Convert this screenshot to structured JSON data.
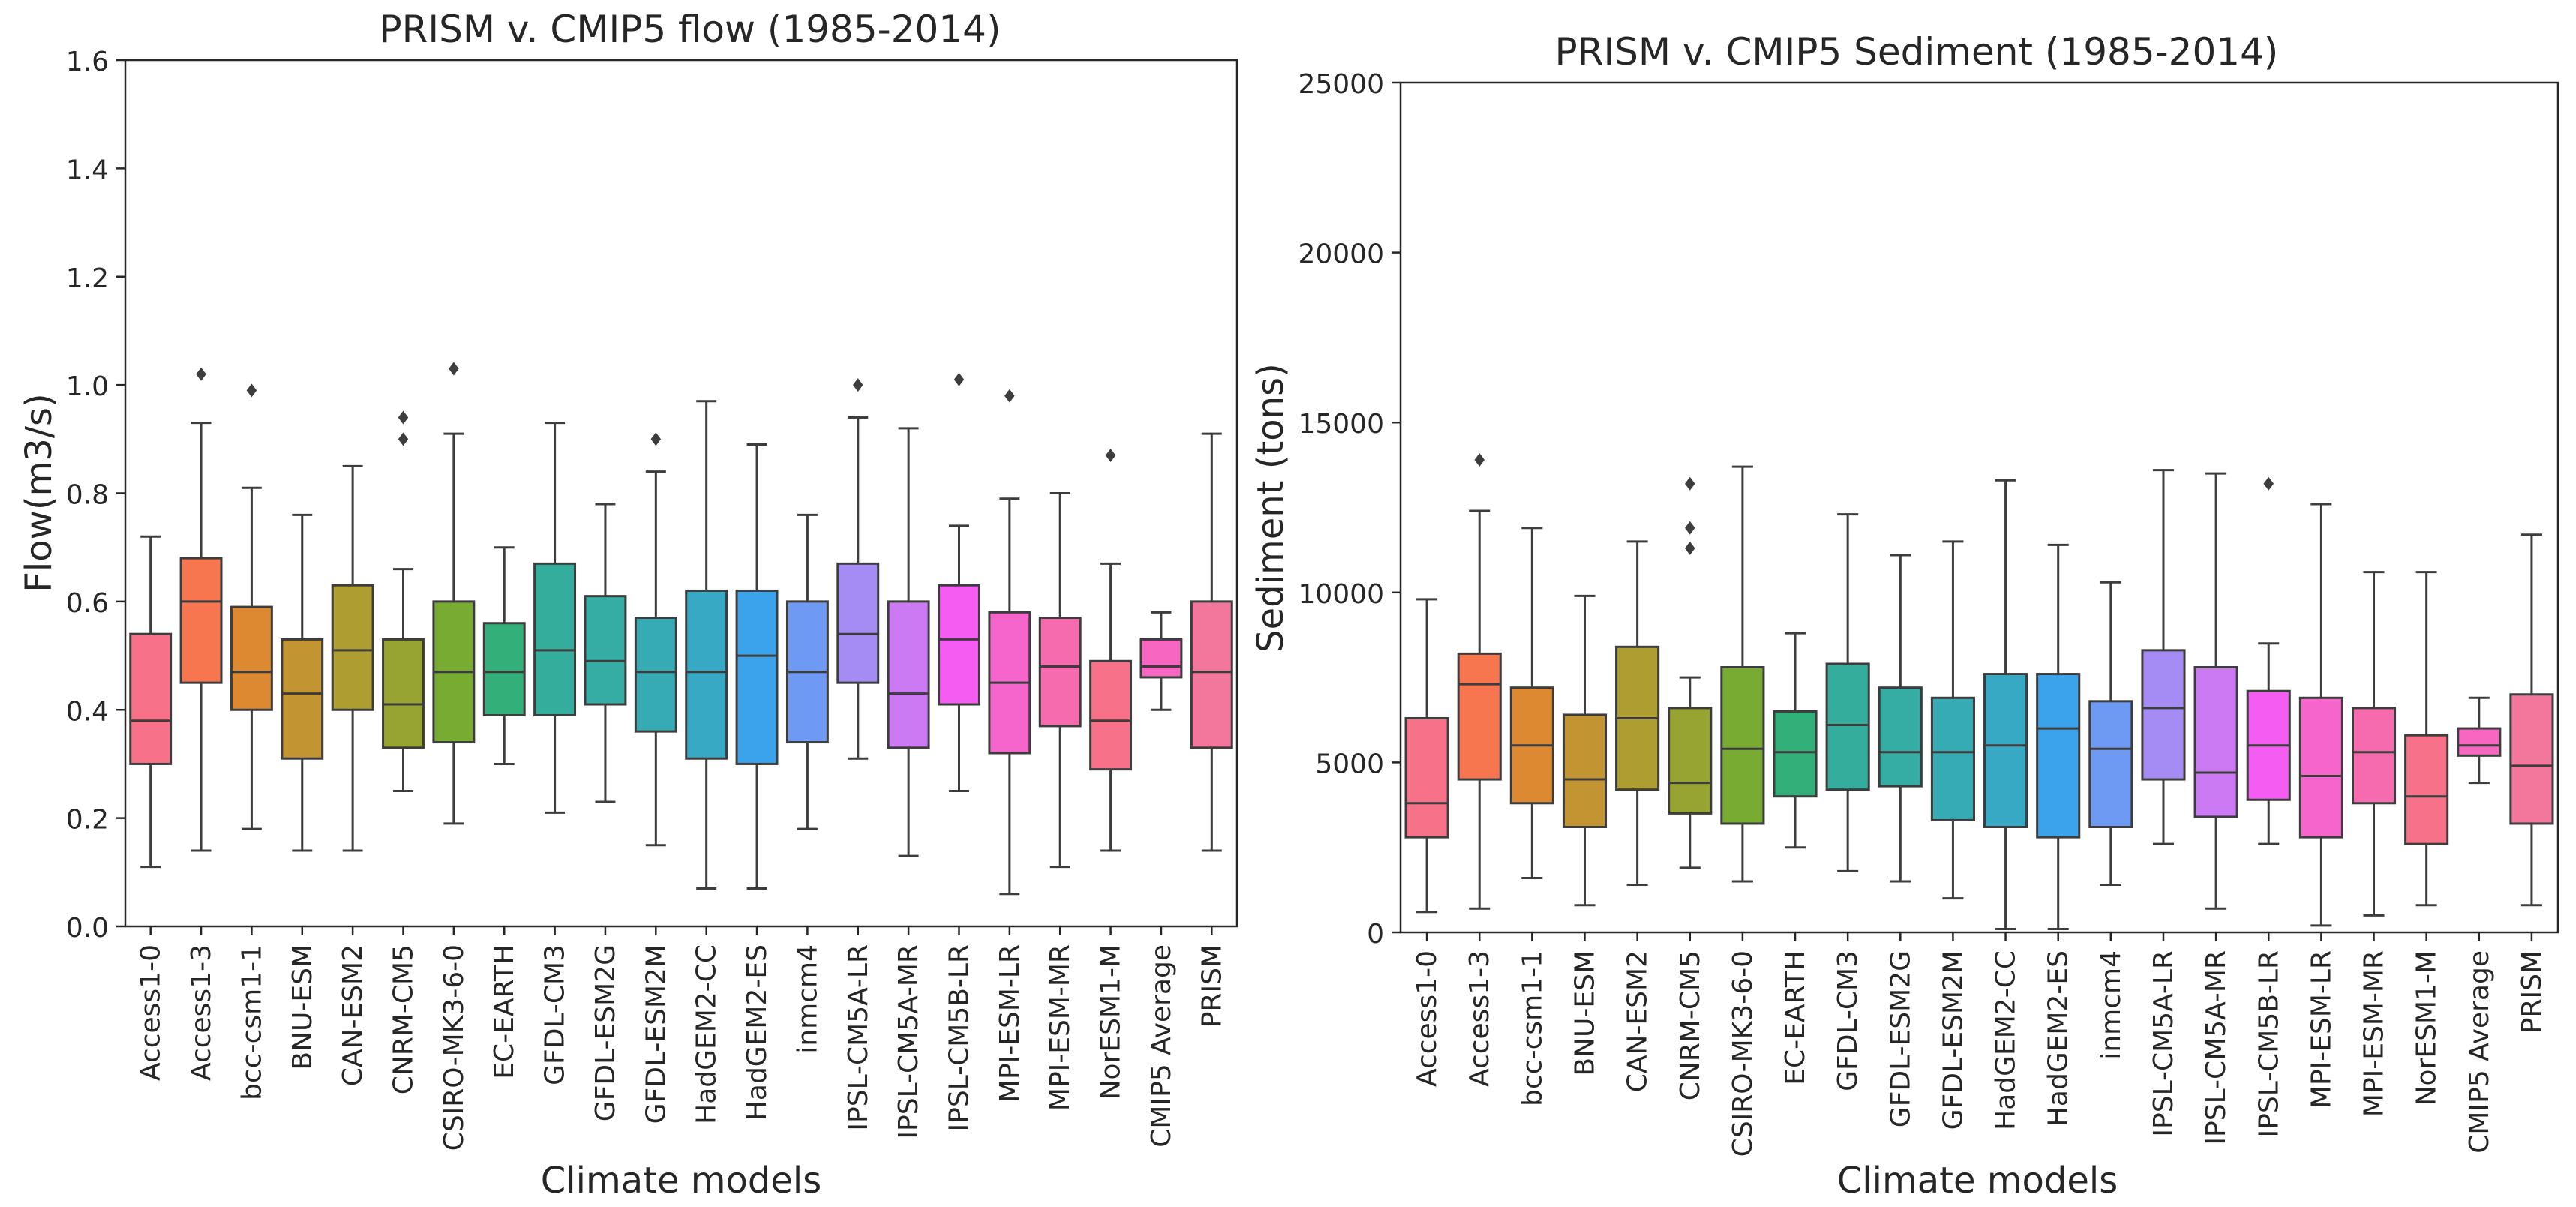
{
  "chart_data": [
    {
      "type": "boxplot",
      "title": "PRISM v. CMIP5 flow (1985-2014)",
      "xlabel": "Climate models",
      "ylabel": "Flow(m3/s)",
      "ylim": [
        0,
        1.6
      ],
      "yticks": [
        0.0,
        0.2,
        0.4,
        0.6,
        0.8,
        1.0,
        1.2,
        1.4,
        1.6
      ],
      "ytick_labels": [
        "0.0",
        "0.2",
        "0.4",
        "0.6",
        "0.8",
        "1.0",
        "1.2",
        "1.4",
        "1.6"
      ],
      "categories": [
        "Access1-0",
        "Access1-3",
        "bcc-csm1-1",
        "BNU-ESM",
        "CAN-ESM2",
        "CNRM-CM5",
        "CSIRO-MK3-6-0",
        "EC-EARTH",
        "GFDL-CM3",
        "GFDL-ESM2G",
        "GFDL-ESM2M",
        "HadGEM2-CC",
        "HadGEM2-ES",
        "inmcm4",
        "IPSL-CM5A-LR",
        "IPSL-CM5A-MR",
        "IPSL-CM5B-LR",
        "MPI-ESM-LR",
        "MPI-ESM-MR",
        "NorESM1-M",
        "CMIP5 Average",
        "PRISM"
      ],
      "boxes": [
        {
          "whisker_low": 0.11,
          "q1": 0.3,
          "median": 0.38,
          "q3": 0.54,
          "whisker_high": 0.72,
          "outliers": []
        },
        {
          "whisker_low": 0.14,
          "q1": 0.45,
          "median": 0.6,
          "q3": 0.68,
          "whisker_high": 0.93,
          "outliers": [
            1.02
          ]
        },
        {
          "whisker_low": 0.18,
          "q1": 0.4,
          "median": 0.47,
          "q3": 0.59,
          "whisker_high": 0.81,
          "outliers": [
            0.99
          ]
        },
        {
          "whisker_low": 0.14,
          "q1": 0.31,
          "median": 0.43,
          "q3": 0.53,
          "whisker_high": 0.76,
          "outliers": []
        },
        {
          "whisker_low": 0.14,
          "q1": 0.4,
          "median": 0.51,
          "q3": 0.63,
          "whisker_high": 0.85,
          "outliers": []
        },
        {
          "whisker_low": 0.25,
          "q1": 0.33,
          "median": 0.41,
          "q3": 0.53,
          "whisker_high": 0.66,
          "outliers": [
            0.9,
            0.94
          ]
        },
        {
          "whisker_low": 0.19,
          "q1": 0.34,
          "median": 0.47,
          "q3": 0.6,
          "whisker_high": 0.91,
          "outliers": [
            1.03
          ]
        },
        {
          "whisker_low": 0.3,
          "q1": 0.39,
          "median": 0.47,
          "q3": 0.56,
          "whisker_high": 0.7,
          "outliers": []
        },
        {
          "whisker_low": 0.21,
          "q1": 0.39,
          "median": 0.51,
          "q3": 0.67,
          "whisker_high": 0.93,
          "outliers": []
        },
        {
          "whisker_low": 0.23,
          "q1": 0.41,
          "median": 0.49,
          "q3": 0.61,
          "whisker_high": 0.78,
          "outliers": []
        },
        {
          "whisker_low": 0.15,
          "q1": 0.36,
          "median": 0.47,
          "q3": 0.57,
          "whisker_high": 0.84,
          "outliers": [
            0.9
          ]
        },
        {
          "whisker_low": 0.07,
          "q1": 0.31,
          "median": 0.47,
          "q3": 0.62,
          "whisker_high": 0.97,
          "outliers": []
        },
        {
          "whisker_low": 0.07,
          "q1": 0.3,
          "median": 0.5,
          "q3": 0.62,
          "whisker_high": 0.89,
          "outliers": []
        },
        {
          "whisker_low": 0.18,
          "q1": 0.34,
          "median": 0.47,
          "q3": 0.6,
          "whisker_high": 0.76,
          "outliers": []
        },
        {
          "whisker_low": 0.31,
          "q1": 0.45,
          "median": 0.54,
          "q3": 0.67,
          "whisker_high": 0.94,
          "outliers": [
            1.0
          ]
        },
        {
          "whisker_low": 0.13,
          "q1": 0.33,
          "median": 0.43,
          "q3": 0.6,
          "whisker_high": 0.92,
          "outliers": []
        },
        {
          "whisker_low": 0.25,
          "q1": 0.41,
          "median": 0.53,
          "q3": 0.63,
          "whisker_high": 0.74,
          "outliers": [
            1.01
          ]
        },
        {
          "whisker_low": 0.06,
          "q1": 0.32,
          "median": 0.45,
          "q3": 0.58,
          "whisker_high": 0.79,
          "outliers": [
            0.98
          ]
        },
        {
          "whisker_low": 0.11,
          "q1": 0.37,
          "median": 0.48,
          "q3": 0.57,
          "whisker_high": 0.8,
          "outliers": []
        },
        {
          "whisker_low": 0.14,
          "q1": 0.29,
          "median": 0.38,
          "q3": 0.49,
          "whisker_high": 0.67,
          "outliers": [
            0.87
          ]
        },
        {
          "whisker_low": 0.4,
          "q1": 0.46,
          "median": 0.48,
          "q3": 0.53,
          "whisker_high": 0.58,
          "outliers": []
        },
        {
          "whisker_low": 0.14,
          "q1": 0.33,
          "median": 0.47,
          "q3": 0.6,
          "whisker_high": 0.91,
          "outliers": []
        }
      ]
    },
    {
      "type": "boxplot",
      "title": "PRISM v. CMIP5 Sediment (1985-2014)",
      "xlabel": "Climate models",
      "ylabel": "Sediment (tons)",
      "ylim": [
        0,
        25000
      ],
      "yticks": [
        0,
        5000,
        10000,
        15000,
        20000,
        25000
      ],
      "ytick_labels": [
        "0",
        "5000",
        "10000",
        "15000",
        "20000",
        "25000"
      ],
      "categories": [
        "Access1-0",
        "Access1-3",
        "bcc-csm1-1",
        "BNU-ESM",
        "CAN-ESM2",
        "CNRM-CM5",
        "CSIRO-MK3-6-0",
        "EC-EARTH",
        "GFDL-CM3",
        "GFDL-ESM2G",
        "GFDL-ESM2M",
        "HadGEM2-CC",
        "HadGEM2-ES",
        "inmcm4",
        "IPSL-CM5A-LR",
        "IPSL-CM5A-MR",
        "IPSL-CM5B-LR",
        "MPI-ESM-LR",
        "MPI-ESM-MR",
        "NorESM1-M",
        "CMIP5 Average",
        "PRISM"
      ],
      "boxes": [
        {
          "whisker_low": 600,
          "q1": 2800,
          "median": 3800,
          "q3": 6300,
          "whisker_high": 9800,
          "outliers": []
        },
        {
          "whisker_low": 700,
          "q1": 4500,
          "median": 7300,
          "q3": 8200,
          "whisker_high": 12400,
          "outliers": [
            13900
          ]
        },
        {
          "whisker_low": 1600,
          "q1": 3800,
          "median": 5500,
          "q3": 7200,
          "whisker_high": 11900,
          "outliers": []
        },
        {
          "whisker_low": 800,
          "q1": 3100,
          "median": 4500,
          "q3": 6400,
          "whisker_high": 9900,
          "outliers": []
        },
        {
          "whisker_low": 1400,
          "q1": 4200,
          "median": 6300,
          "q3": 8400,
          "whisker_high": 11500,
          "outliers": []
        },
        {
          "whisker_low": 1900,
          "q1": 3500,
          "median": 4400,
          "q3": 6600,
          "whisker_high": 7500,
          "outliers": [
            11300,
            11900,
            13200
          ]
        },
        {
          "whisker_low": 1500,
          "q1": 3200,
          "median": 5400,
          "q3": 7800,
          "whisker_high": 13700,
          "outliers": []
        },
        {
          "whisker_low": 2500,
          "q1": 4000,
          "median": 5300,
          "q3": 6500,
          "whisker_high": 8800,
          "outliers": []
        },
        {
          "whisker_low": 1800,
          "q1": 4200,
          "median": 6100,
          "q3": 7900,
          "whisker_high": 12300,
          "outliers": []
        },
        {
          "whisker_low": 1500,
          "q1": 4300,
          "median": 5300,
          "q3": 7200,
          "whisker_high": 11100,
          "outliers": []
        },
        {
          "whisker_low": 1000,
          "q1": 3300,
          "median": 5300,
          "q3": 6900,
          "whisker_high": 11500,
          "outliers": []
        },
        {
          "whisker_low": 100,
          "q1": 3100,
          "median": 5500,
          "q3": 7600,
          "whisker_high": 13300,
          "outliers": []
        },
        {
          "whisker_low": 100,
          "q1": 2800,
          "median": 6000,
          "q3": 7600,
          "whisker_high": 11400,
          "outliers": []
        },
        {
          "whisker_low": 1400,
          "q1": 3100,
          "median": 5400,
          "q3": 6800,
          "whisker_high": 10300,
          "outliers": []
        },
        {
          "whisker_low": 2600,
          "q1": 4500,
          "median": 6600,
          "q3": 8300,
          "whisker_high": 13600,
          "outliers": []
        },
        {
          "whisker_low": 700,
          "q1": 3400,
          "median": 4700,
          "q3": 7800,
          "whisker_high": 13500,
          "outliers": []
        },
        {
          "whisker_low": 2600,
          "q1": 3900,
          "median": 5500,
          "q3": 7100,
          "whisker_high": 8500,
          "outliers": [
            13200
          ]
        },
        {
          "whisker_low": 200,
          "q1": 2800,
          "median": 4600,
          "q3": 6900,
          "whisker_high": 12600,
          "outliers": []
        },
        {
          "whisker_low": 500,
          "q1": 3800,
          "median": 5300,
          "q3": 6600,
          "whisker_high": 10600,
          "outliers": []
        },
        {
          "whisker_low": 800,
          "q1": 2600,
          "median": 4000,
          "q3": 5800,
          "whisker_high": 10600,
          "outliers": []
        },
        {
          "whisker_low": 4400,
          "q1": 5200,
          "median": 5500,
          "q3": 6000,
          "whisker_high": 6900,
          "outliers": []
        },
        {
          "whisker_low": 800,
          "q1": 3200,
          "median": 4900,
          "q3": 7000,
          "whisker_high": 11700,
          "outliers": []
        }
      ]
    }
  ],
  "palette": [
    "#f77189",
    "#f7754f",
    "#dc8932",
    "#c39532",
    "#ae9d31",
    "#97a431",
    "#77ab31",
    "#33b07a",
    "#35ad9c",
    "#36ada4",
    "#37abb4",
    "#38a9c5",
    "#3ba3ec",
    "#6e9af4",
    "#a48cf4",
    "#cc7af4",
    "#f45cf2",
    "#f565cc",
    "#f66bad",
    "#f77189",
    "#f766c0",
    "#f3769d"
  ]
}
